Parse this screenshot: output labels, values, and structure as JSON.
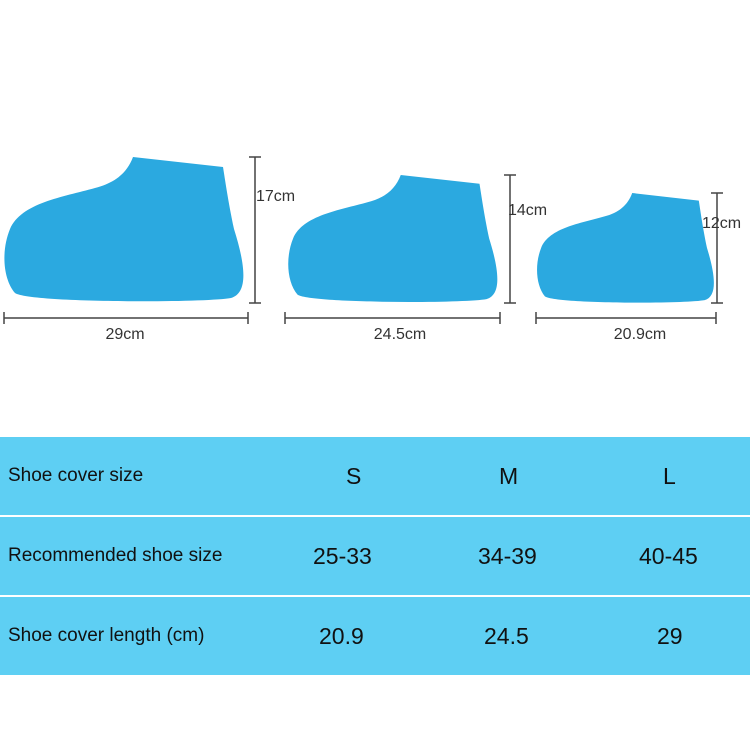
{
  "colors": {
    "shoe": "#2ba9e0",
    "table": "#5ecff3",
    "dimension_line": "#444444"
  },
  "shoes": [
    {
      "size": "L",
      "height_label": "17cm",
      "length_label": "29cm"
    },
    {
      "size": "M",
      "height_label": "14cm",
      "length_label": "24.5cm"
    },
    {
      "size": "S",
      "height_label": "12cm",
      "length_label": "20.9cm"
    }
  ],
  "table": {
    "rows": [
      {
        "label": "Shoe cover size",
        "values": [
          "S",
          "M",
          "L"
        ]
      },
      {
        "label": "Recommended shoe size",
        "values": [
          "25-33",
          "34-39",
          "40-45"
        ]
      },
      {
        "label": "Shoe cover length (cm)",
        "values": [
          "20.9",
          "24.5",
          "29"
        ]
      }
    ]
  }
}
